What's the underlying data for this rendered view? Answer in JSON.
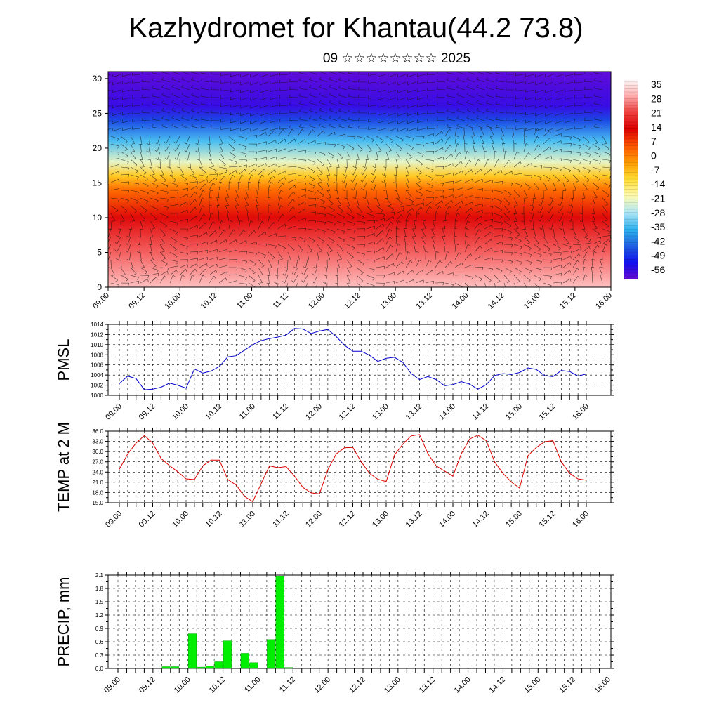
{
  "page": {
    "title": "Kazhydromet for Khantau(44.2 73.8)",
    "subtitle": "09 ☆☆☆☆☆☆☆☆ 2025"
  },
  "colors": {
    "pmsl_line": "#0000cc",
    "temp_line": "#dd0000",
    "precip_bar": "#00ee00",
    "precip_bar_edge": "#00aa00",
    "colormap": [
      "#ffffff",
      "#ffb0b0",
      "#f04040",
      "#dd0000",
      "#ff5500",
      "#ff9900",
      "#ffdd33",
      "#fffbb0",
      "#b0e6f5",
      "#30b4f0",
      "#2060e0",
      "#1010ee",
      "#6a0ad6"
    ]
  },
  "time_labels": [
    "09.00",
    "09.12",
    "10.00",
    "10.12",
    "11.00",
    "11.12",
    "12.00",
    "12.12",
    "13.00",
    "13.12",
    "14.00",
    "14.12",
    "15.00",
    "15.12",
    "16.00"
  ],
  "chart_data": [
    {
      "id": "cross_section",
      "type": "heatmap",
      "description_visible": "Vertical temperature cross-section with wind barbs",
      "x_labels": [
        "09.00",
        "09.12",
        "10.00",
        "10.12",
        "11.00",
        "11.12",
        "12.00",
        "12.12",
        "13.00",
        "13.12",
        "14.00",
        "14.12",
        "15.00",
        "15.12",
        "16.00"
      ],
      "y_ticks": [
        0,
        5,
        10,
        15,
        20,
        25,
        30
      ],
      "ylim": [
        0,
        31
      ],
      "colorbar_labels": [
        "35",
        "28",
        "21",
        "14",
        "7",
        "0",
        "-7",
        "-14",
        "-21",
        "-28",
        "-35",
        "-42",
        "-49",
        "-56"
      ],
      "colorbar_range": [
        -63,
        42
      ],
      "level_temps": [
        {
          "level": 0,
          "value": 35
        },
        {
          "level": 5,
          "value": 27
        },
        {
          "level": 10,
          "value": 17
        },
        {
          "level": 14,
          "value": 4
        },
        {
          "level": 16,
          "value": -8
        },
        {
          "level": 18,
          "value": -22
        },
        {
          "level": 21,
          "value": -35
        },
        {
          "level": 24,
          "value": -48
        },
        {
          "level": 26,
          "value": -58
        },
        {
          "level": 31,
          "value": -62
        }
      ]
    },
    {
      "id": "pmsl",
      "type": "line",
      "ylabel": "PMSL",
      "ylim": [
        1000,
        1014
      ],
      "y_ticks": [
        "1000",
        "1002",
        "1004",
        "1006",
        "1008",
        "1010",
        "1012",
        "1014"
      ],
      "x_labels": [
        "09.00",
        "09.12",
        "10.00",
        "10.12",
        "11.00",
        "11.12",
        "12.00",
        "12.12",
        "13.00",
        "13.12",
        "14.00",
        "14.12",
        "15.00",
        "15.12",
        "16.00"
      ],
      "x_step_hours": 3,
      "values": [
        1002.3,
        1003.8,
        1003.3,
        1001.1,
        1001.2,
        1001.6,
        1002.4,
        1002.0,
        1001.4,
        1005.2,
        1004.4,
        1004.8,
        1005.7,
        1007.6,
        1007.8,
        1008.9,
        1010.0,
        1010.8,
        1011.2,
        1011.5,
        1011.9,
        1013.2,
        1013.1,
        1012.2,
        1012.7,
        1013.0,
        1011.6,
        1009.9,
        1008.7,
        1008.7,
        1007.9,
        1006.7,
        1007.3,
        1007.5,
        1006.5,
        1004.3,
        1003.1,
        1003.7,
        1003.1,
        1001.9,
        1002.1,
        1002.7,
        1002.2,
        1001.2,
        1002.1,
        1003.9,
        1004.3,
        1004.1,
        1004.5,
        1005.4,
        1005.1,
        1003.9,
        1003.7,
        1004.9,
        1004.7,
        1003.8,
        1004.2
      ]
    },
    {
      "id": "temp2m",
      "type": "line",
      "ylabel": "TEMP at 2 M",
      "ylim": [
        15,
        36
      ],
      "y_ticks": [
        "15.0",
        "18.0",
        "21.0",
        "24.0",
        "27.0",
        "30.0",
        "33.0",
        "36.0"
      ],
      "x_labels": [
        "09.00",
        "09.12",
        "10.00",
        "10.12",
        "11.00",
        "11.12",
        "12.00",
        "12.12",
        "13.00",
        "13.12",
        "14.00",
        "14.12",
        "15.00",
        "15.12",
        "16.00"
      ],
      "x_step_hours": 3,
      "values": [
        24.8,
        29.3,
        32.5,
        34.7,
        32.5,
        28.0,
        25.9,
        24.1,
        22.0,
        21.8,
        25.8,
        27.5,
        27.5,
        21.8,
        20.2,
        16.9,
        15.3,
        20.6,
        25.8,
        25.3,
        25.6,
        22.8,
        19.5,
        17.9,
        17.6,
        24.7,
        29.3,
        31.1,
        31.2,
        27.0,
        23.6,
        21.9,
        21.2,
        29.0,
        32.2,
        34.6,
        35.0,
        29.4,
        25.8,
        24.3,
        22.8,
        29.3,
        33.7,
        34.8,
        33.2,
        27.0,
        23.6,
        21.1,
        19.3,
        28.8,
        31.2,
        32.9,
        33.2,
        27.0,
        23.6,
        22.0,
        21.6
      ]
    },
    {
      "id": "precip",
      "type": "bar",
      "ylabel": "PRECIP, mm",
      "ylim": [
        0,
        2.1
      ],
      "y_ticks": [
        "0.0",
        "0.3",
        "0.6",
        "0.9",
        "1.2",
        "1.5",
        "1.8",
        "2.1"
      ],
      "x_labels": [
        "09.00",
        "09.12",
        "10.00",
        "10.12",
        "11.00",
        "11.12",
        "12.00",
        "12.12",
        "13.00",
        "13.12",
        "14.00",
        "14.12",
        "15.00",
        "15.12",
        "16.00"
      ],
      "x_step_hours": 3,
      "values": [
        0,
        0,
        0,
        0,
        0,
        0.04,
        0.04,
        0,
        0.78,
        0.03,
        0.05,
        0.15,
        0.62,
        0,
        0.34,
        0.13,
        0,
        0.65,
        2.08,
        0.02,
        0,
        0,
        0,
        0,
        0,
        0,
        0,
        0,
        0,
        0,
        0,
        0,
        0,
        0,
        0,
        0,
        0,
        0,
        0,
        0,
        0,
        0,
        0,
        0,
        0,
        0,
        0,
        0,
        0,
        0,
        0,
        0,
        0,
        0,
        0,
        0
      ]
    }
  ]
}
